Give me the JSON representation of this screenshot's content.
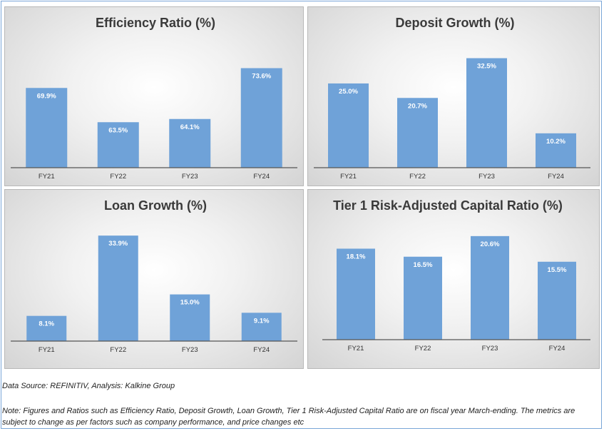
{
  "chart_data": [
    {
      "type": "bar",
      "title": "Efficiency Ratio (%)",
      "categories": [
        "FY21",
        "FY22",
        "FY23",
        "FY24"
      ],
      "values": [
        69.9,
        63.5,
        64.1,
        73.6
      ],
      "labels": [
        "69.9%",
        "63.5%",
        "64.1%",
        "73.6%"
      ],
      "ylim": [
        55,
        77
      ],
      "color": "#6fa2d8"
    },
    {
      "type": "bar",
      "title": "Deposit Growth (%)",
      "categories": [
        "FY21",
        "FY22",
        "FY23",
        "FY24"
      ],
      "values": [
        25.0,
        20.7,
        32.5,
        10.2
      ],
      "labels": [
        "25.0%",
        "20.7%",
        "32.5%",
        "10.2%"
      ],
      "ylim": [
        0,
        36
      ],
      "color": "#6fa2d8"
    },
    {
      "type": "bar",
      "title": "Loan Growth (%)",
      "categories": [
        "FY21",
        "FY22",
        "FY23",
        "FY24"
      ],
      "values": [
        8.1,
        33.9,
        15.0,
        9.1
      ],
      "labels": [
        "8.1%",
        "33.9%",
        "15.0%",
        "9.1%"
      ],
      "ylim": [
        0,
        36
      ],
      "color": "#6fa2d8"
    },
    {
      "type": "bar",
      "title": "Tier 1 Risk-Adjusted Capital Ratio (%)",
      "categories": [
        "FY21",
        "FY22",
        "FY23",
        "FY24"
      ],
      "values": [
        18.1,
        16.5,
        20.6,
        15.5
      ],
      "labels": [
        "18.1%",
        "16.5%",
        "20.6%",
        "15.5%"
      ],
      "ylim": [
        0,
        22
      ],
      "color": "#6fa2d8"
    }
  ],
  "source": "Data Source: REFINITIV, Analysis: Kalkine Group",
  "note": "Note: Figures and Ratios such as Efficiency Ratio, Deposit Growth, Loan Growth, Tier 1 Risk-Adjusted Capital Ratio are on fiscal year March-ending. The metrics are subject to change as per factors such as company performance, and price changes etc"
}
